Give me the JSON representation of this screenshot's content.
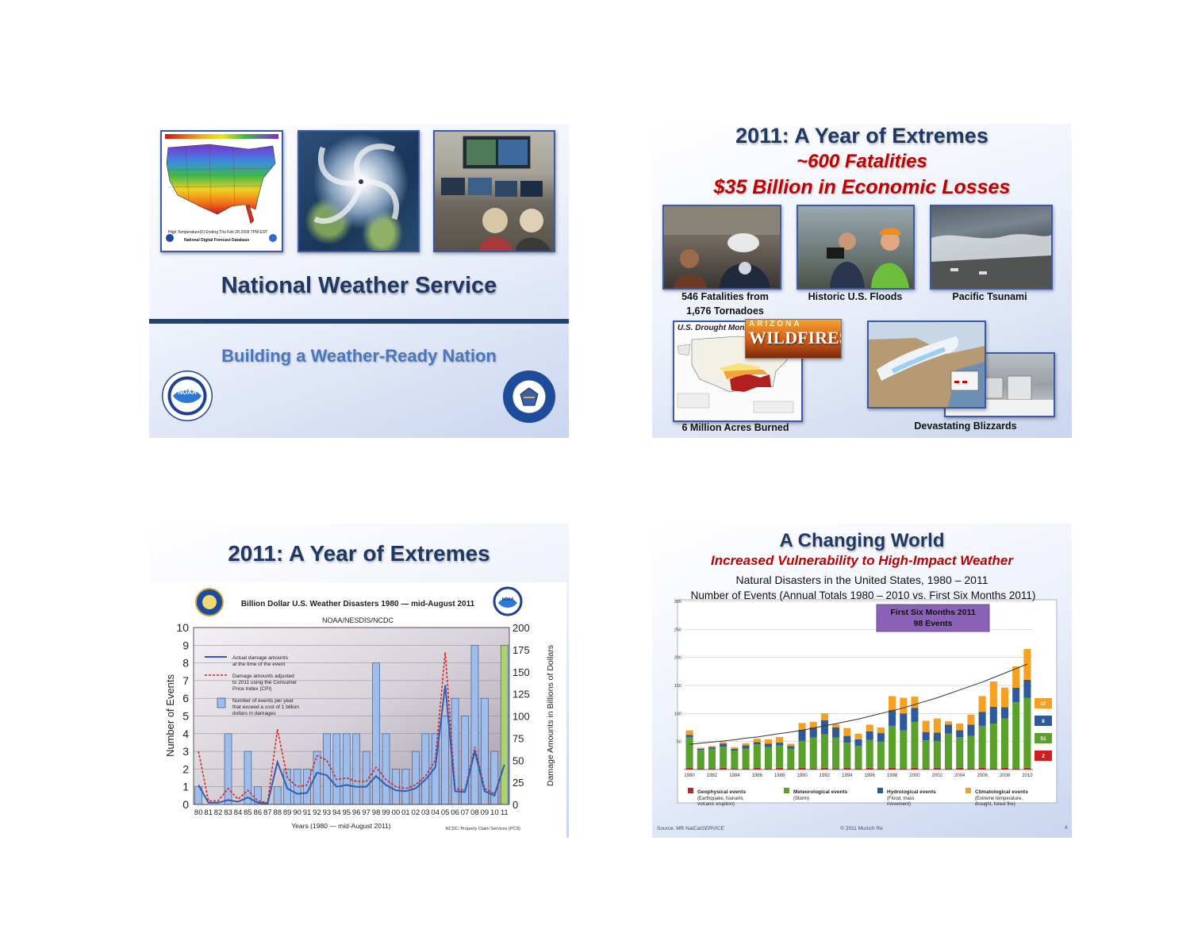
{
  "slide1": {
    "title": "National Weather Service",
    "subtitle": "Building a Weather-Ready Nation",
    "map_caption_1": "High Temperature(F) Ending Thu Feb 28 2009  7PM EST",
    "map_caption_2": "National Digital Forecast Database",
    "noaa_label": "NOAA",
    "colors": {
      "title": "#1f3864",
      "subtitle": "#4a78c0",
      "rule": "#24406e"
    }
  },
  "slide2": {
    "title": "2011:  A Year of Extremes",
    "line2": "~600 Fatalities",
    "line3": "$35 Billion in Economic Losses",
    "captions": {
      "tornadoes_1": "546 Fatalities from",
      "tornadoes_2": "1,676 Tornadoes",
      "floods": "Historic U.S. Floods",
      "tsunami": "Pacific Tsunami",
      "wildfires": "6 Million Acres Burned",
      "blizzards": "Devastating Blizzards"
    },
    "drought_monitor_label": "U.S. Drought Moni",
    "wildfires_banner_1": "ARIZONA",
    "wildfires_banner_2": "WILDFIRES",
    "colors": {
      "title": "#1f3864",
      "red": "#c00000"
    }
  },
  "slide3": {
    "title": "2011:  A Year of Extremes",
    "noaa_label": "NOAA",
    "chart_data": {
      "type": "bar",
      "title": "Billion Dollar U.S. Weather Disasters 1980 — mid-August 2011",
      "subtitle": "NOAA/NESDIS/NCDC",
      "xlabel": "Years (1980 — mid-August 2011)",
      "ylabel": "Number of Events",
      "y2label": "Damage Amounts in Billions of Dollars",
      "source": "NCDC; Property Claim Services (PCS)",
      "categories": [
        "80",
        "81",
        "82",
        "83",
        "84",
        "85",
        "86",
        "87",
        "88",
        "89",
        "90",
        "91",
        "92",
        "93",
        "94",
        "95",
        "96",
        "97",
        "98",
        "99",
        "00",
        "01",
        "02",
        "03",
        "04",
        "05",
        "06",
        "07",
        "08",
        "09",
        "10",
        "11"
      ],
      "ylim": [
        0,
        10
      ],
      "y2lim": [
        0,
        200
      ],
      "yticks": [
        0,
        1,
        2,
        3,
        4,
        5,
        6,
        7,
        8,
        9,
        10
      ],
      "y2ticks": [
        0,
        25,
        50,
        75,
        100,
        125,
        150,
        175,
        200
      ],
      "series": [
        {
          "name": "Number of events per year that exceed a cost of 1 billion dollars in damages",
          "axis": "left",
          "values": [
            1,
            0,
            0,
            4,
            0,
            3,
            1,
            0,
            1,
            2,
            2,
            2,
            3,
            4,
            4,
            4,
            4,
            3,
            8,
            4,
            2,
            2,
            3,
            4,
            4,
            5,
            6,
            5,
            9,
            6,
            3,
            9
          ]
        },
        {
          "name": "Actual damage amounts at the time of the event",
          "axis": "right",
          "values": [
            22,
            2,
            2,
            5,
            3,
            8,
            2,
            1,
            48,
            18,
            12,
            13,
            36,
            33,
            20,
            22,
            20,
            20,
            32,
            22,
            16,
            15,
            18,
            28,
            42,
            135,
            15,
            14,
            60,
            15,
            10,
            45
          ]
        },
        {
          "name": "Damage amounts adjusted to 2011 using the Consumer Price Index (CPI)",
          "axis": "right",
          "values": [
            60,
            4,
            4,
            18,
            6,
            16,
            4,
            2,
            85,
            30,
            20,
            22,
            55,
            50,
            28,
            30,
            26,
            26,
            42,
            28,
            20,
            18,
            22,
            32,
            50,
            172,
            18,
            16,
            65,
            18,
            12,
            45
          ]
        }
      ],
      "legend": [
        "Actual damage amounts at the time of the event",
        "Damage amounts adjusted to 2011 using the Consumer Price Index (CPI)",
        "Number of events per year that exceed a cost of 1 billion dollars in damages"
      ],
      "highlight_color": "#a9d46f",
      "bar_color": "#9fbde8"
    }
  },
  "slide4": {
    "title": "A Changing World",
    "subtitle": "Increased Vulnerability to High-Impact Weather",
    "chart_title_1": "Natural Disasters in the United States, 1980 – 2011",
    "chart_title_2": "Number of Events (Annual Totals 1980 – 2010 vs. First Six Months 2011)",
    "box_1": "First Six Months 2011",
    "box_2": "98 Events",
    "footer_source": "Source: MR NatCat",
    "footer_service": "SERVICE",
    "footer_copy": "© 2011 Munich Re",
    "page_number": "4",
    "chart_data": {
      "type": "bar",
      "stacked": true,
      "years": [
        1980,
        1981,
        1982,
        1983,
        1984,
        1985,
        1986,
        1987,
        1988,
        1989,
        1990,
        1991,
        1992,
        1993,
        1994,
        1995,
        1996,
        1997,
        1998,
        1999,
        2000,
        2001,
        2002,
        2003,
        2004,
        2005,
        2006,
        2007,
        2008,
        2009,
        2010
      ],
      "xticks": [
        "1980",
        "1982",
        "1984",
        "1986",
        "1988",
        "1990",
        "1992",
        "1994",
        "1996",
        "1998",
        "2000",
        "2002",
        "2004",
        "2006",
        "2008",
        "2010"
      ],
      "yticks": [
        50,
        100,
        150,
        200,
        250,
        300
      ],
      "ylim": [
        0,
        300
      ],
      "series": [
        {
          "name": "Geophysical events",
          "desc_1": "(Earthquake, tsunami,",
          "desc_2": "volcanic eruption)",
          "color": "#cc1f1f",
          "values": [
            3,
            2,
            2,
            3,
            2,
            2,
            3,
            2,
            3,
            2,
            3,
            2,
            3,
            2,
            3,
            2,
            3,
            2,
            3,
            2,
            3,
            2,
            3,
            2,
            3,
            2,
            3,
            2,
            3,
            2,
            3
          ]
        },
        {
          "name": "Meteorological events",
          "desc_1": "(Storm)",
          "desc_2": "",
          "color": "#5aa02c",
          "values": [
            55,
            33,
            35,
            38,
            32,
            35,
            42,
            38,
            40,
            35,
            48,
            55,
            60,
            55,
            45,
            40,
            50,
            48,
            75,
            68,
            82,
            50,
            48,
            62,
            55,
            58,
            75,
            80,
            88,
            118,
            125
          ]
        },
        {
          "name": "Hydrological events",
          "desc_1": "(Flood, mass",
          "desc_2": "movement)",
          "color": "#2f5a9a",
          "values": [
            4,
            2,
            3,
            5,
            3,
            6,
            4,
            6,
            5,
            5,
            20,
            18,
            25,
            18,
            12,
            12,
            15,
            15,
            28,
            30,
            25,
            15,
            15,
            16,
            12,
            20,
            25,
            30,
            20,
            26,
            32
          ]
        },
        {
          "name": "Climatological events",
          "desc_1": "(Extreme temperature,",
          "desc_2": "drought, forest fire)",
          "color": "#f5a020",
          "values": [
            8,
            2,
            2,
            3,
            3,
            4,
            6,
            8,
            10,
            4,
            12,
            10,
            12,
            6,
            14,
            10,
            12,
            10,
            25,
            28,
            20,
            20,
            25,
            6,
            12,
            18,
            28,
            45,
            35,
            38,
            55
          ]
        }
      ],
      "trend": [
        45,
        47,
        49,
        51,
        53,
        56,
        58,
        61,
        64,
        67,
        70,
        74,
        78,
        82,
        86,
        90,
        95,
        100,
        105,
        110,
        116,
        122,
        128,
        135,
        142,
        149,
        156,
        164,
        172,
        180,
        188
      ],
      "first_half_2011": [
        {
          "value": "37",
          "color": "#f5a020"
        },
        {
          "value": "8",
          "color": "#2f5a9a"
        },
        {
          "value": "51",
          "color": "#5aa02c"
        },
        {
          "value": "2",
          "color": "#cc1f1f"
        }
      ]
    }
  }
}
